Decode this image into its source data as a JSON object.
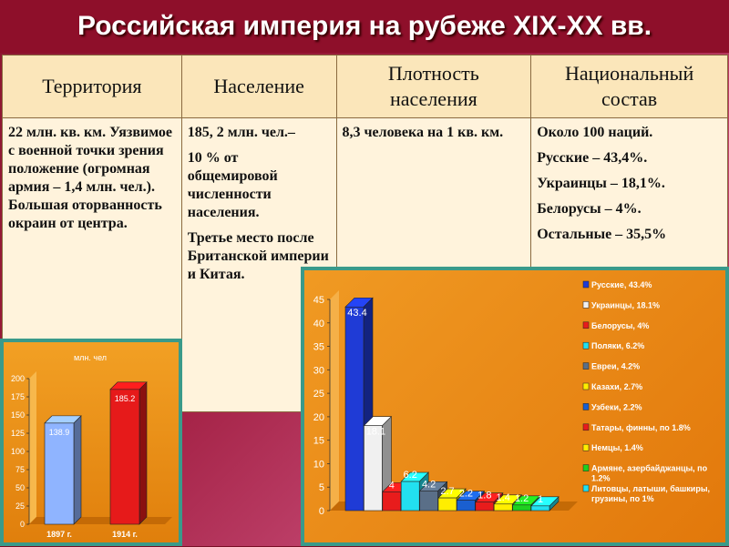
{
  "title": "Российская империя на рубеже XIX-XX вв.",
  "table": {
    "headers": [
      "Территория",
      "Население",
      "Плотность населения",
      "Национальный состав"
    ],
    "col1": "22 млн. кв. км. Уязвимое с военной точки зрения положение (огромная армия – 1,4 млн. чел.). Большая оторванность окраин от центра.",
    "col2": [
      "185, 2 млн. чел.–",
      "10 % от общемировой численности населения.",
      "Третье место после Британской империи и Китая."
    ],
    "col3": "8,3 человека на 1 кв. км.",
    "col4": [
      "Около 100 наций.",
      "Русские – 43,4%.",
      "Украинцы – 18,1%.",
      "Белорусы – 4%.",
      "Остальные – 35,5%"
    ]
  },
  "chart_data": [
    {
      "type": "bar",
      "title": "млн. чел",
      "categories": [
        "1897 г.",
        "1914 г."
      ],
      "values": [
        138.9,
        185.2
      ],
      "colors": [
        "#8fb4ff",
        "#e61a1a"
      ],
      "ylim": [
        0,
        200
      ],
      "yticks": [
        0,
        25,
        50,
        75,
        100,
        125,
        150,
        175,
        200
      ]
    },
    {
      "type": "bar",
      "ylim": [
        0,
        45
      ],
      "yticks": [
        0,
        5,
        10,
        15,
        20,
        25,
        30,
        35,
        40,
        45
      ],
      "series": [
        {
          "name": "Русские, 43.4%",
          "value": 43.4,
          "label": "43.4",
          "color": "#1f3bd6"
        },
        {
          "name": "Украинцы, 18.1%",
          "value": 18.1,
          "label": "18.1",
          "color": "#f0f0f0"
        },
        {
          "name": "Белорусы, 4%",
          "value": 4,
          "label": "4",
          "color": "#e81c1c"
        },
        {
          "name": "Поляки, 6.2%",
          "value": 6.2,
          "label": "6.2",
          "color": "#22e0f0"
        },
        {
          "name": "Евреи, 4.2%",
          "value": 4.2,
          "label": "4.2",
          "color": "#5a6f88"
        },
        {
          "name": "Казахи, 2.7%",
          "value": 2.7,
          "label": "2.7",
          "color": "#ffee00"
        },
        {
          "name": "Узбеки, 2.2%",
          "value": 2.2,
          "label": "2.2",
          "color": "#1a5fd0"
        },
        {
          "name": "Татары, финны, по 1.8%",
          "value": 1.8,
          "label": "1.8",
          "color": "#e81c1c"
        },
        {
          "name": "Немцы, 1.4%",
          "value": 1.4,
          "label": "1.4",
          "color": "#ffee00"
        },
        {
          "name": "Армяне, азербайджанцы, по 1.2%",
          "value": 1.2,
          "label": "1.2",
          "color": "#1fd01f"
        },
        {
          "name": "Литовцы, латыши, башкиры, грузины, по 1%",
          "value": 1,
          "label": "1",
          "color": "#22e0f0"
        }
      ]
    }
  ]
}
